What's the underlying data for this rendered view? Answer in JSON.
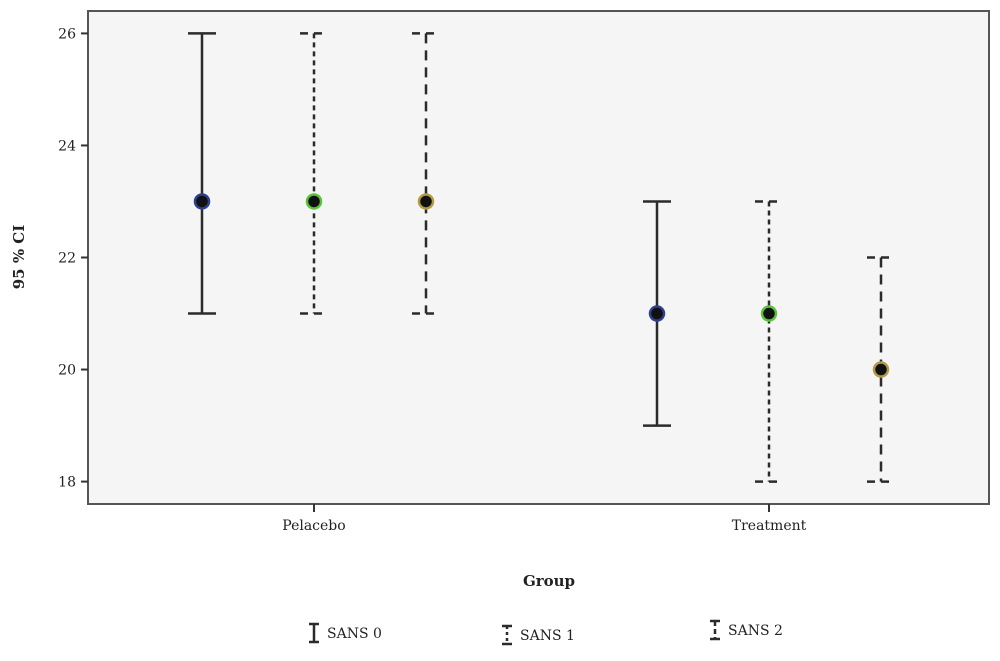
{
  "chart_data": {
    "type": "errorbar",
    "xlabel": "Group",
    "ylabel": "95 % CI",
    "categories": [
      "Pelacebo",
      "Treatment"
    ],
    "ylim": [
      17.6,
      26.4
    ],
    "yticks": [
      18,
      20,
      22,
      24,
      26
    ],
    "grid": false,
    "legend_position": "bottom",
    "series": [
      {
        "name": "SANS 0",
        "line_style": "solid",
        "marker_color": "#2e3f8f",
        "mean": [
          23,
          21
        ],
        "lower": [
          21,
          19
        ],
        "upper": [
          26,
          23
        ]
      },
      {
        "name": "SANS 1",
        "line_style": "dotted",
        "marker_color": "#5ac23a",
        "mean": [
          23,
          21
        ],
        "lower": [
          21,
          18
        ],
        "upper": [
          26,
          23
        ]
      },
      {
        "name": "SANS 2",
        "line_style": "dashed",
        "marker_color": "#b59a45",
        "mean": [
          23,
          20
        ],
        "lower": [
          21,
          18
        ],
        "upper": [
          26,
          22
        ]
      }
    ]
  }
}
